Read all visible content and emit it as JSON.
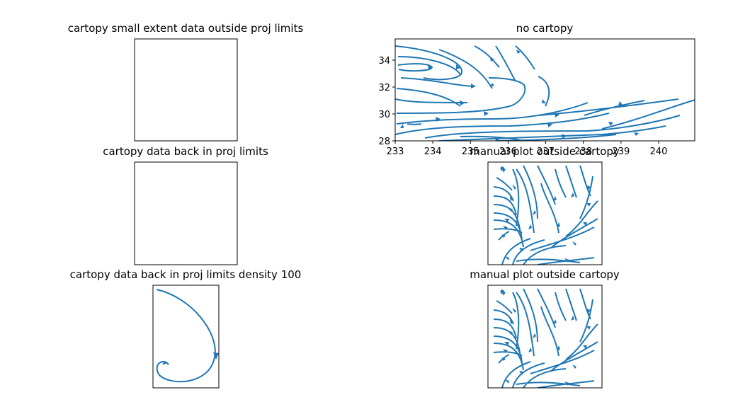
{
  "chart_data": [
    {
      "type": "streamplot",
      "title": "cartopy small extent data outside proj limits"
    },
    {
      "type": "streamplot",
      "title": "cartopy data back in proj limits"
    },
    {
      "type": "streamplot",
      "title": "cartopy data back in proj limits density 100"
    },
    {
      "type": "streamplot",
      "title": "no cartopy",
      "xlim": [
        233,
        240.96
      ],
      "xticks": [
        233,
        234,
        235,
        236,
        237,
        238,
        239,
        240
      ],
      "ylim": [
        28,
        35.58
      ],
      "yticks": [
        28,
        30,
        32,
        34
      ]
    },
    {
      "type": "streamplot",
      "title": "manual plot outside cartopy"
    },
    {
      "type": "streamplot",
      "title": "manual plot outside cartopy"
    }
  ]
}
